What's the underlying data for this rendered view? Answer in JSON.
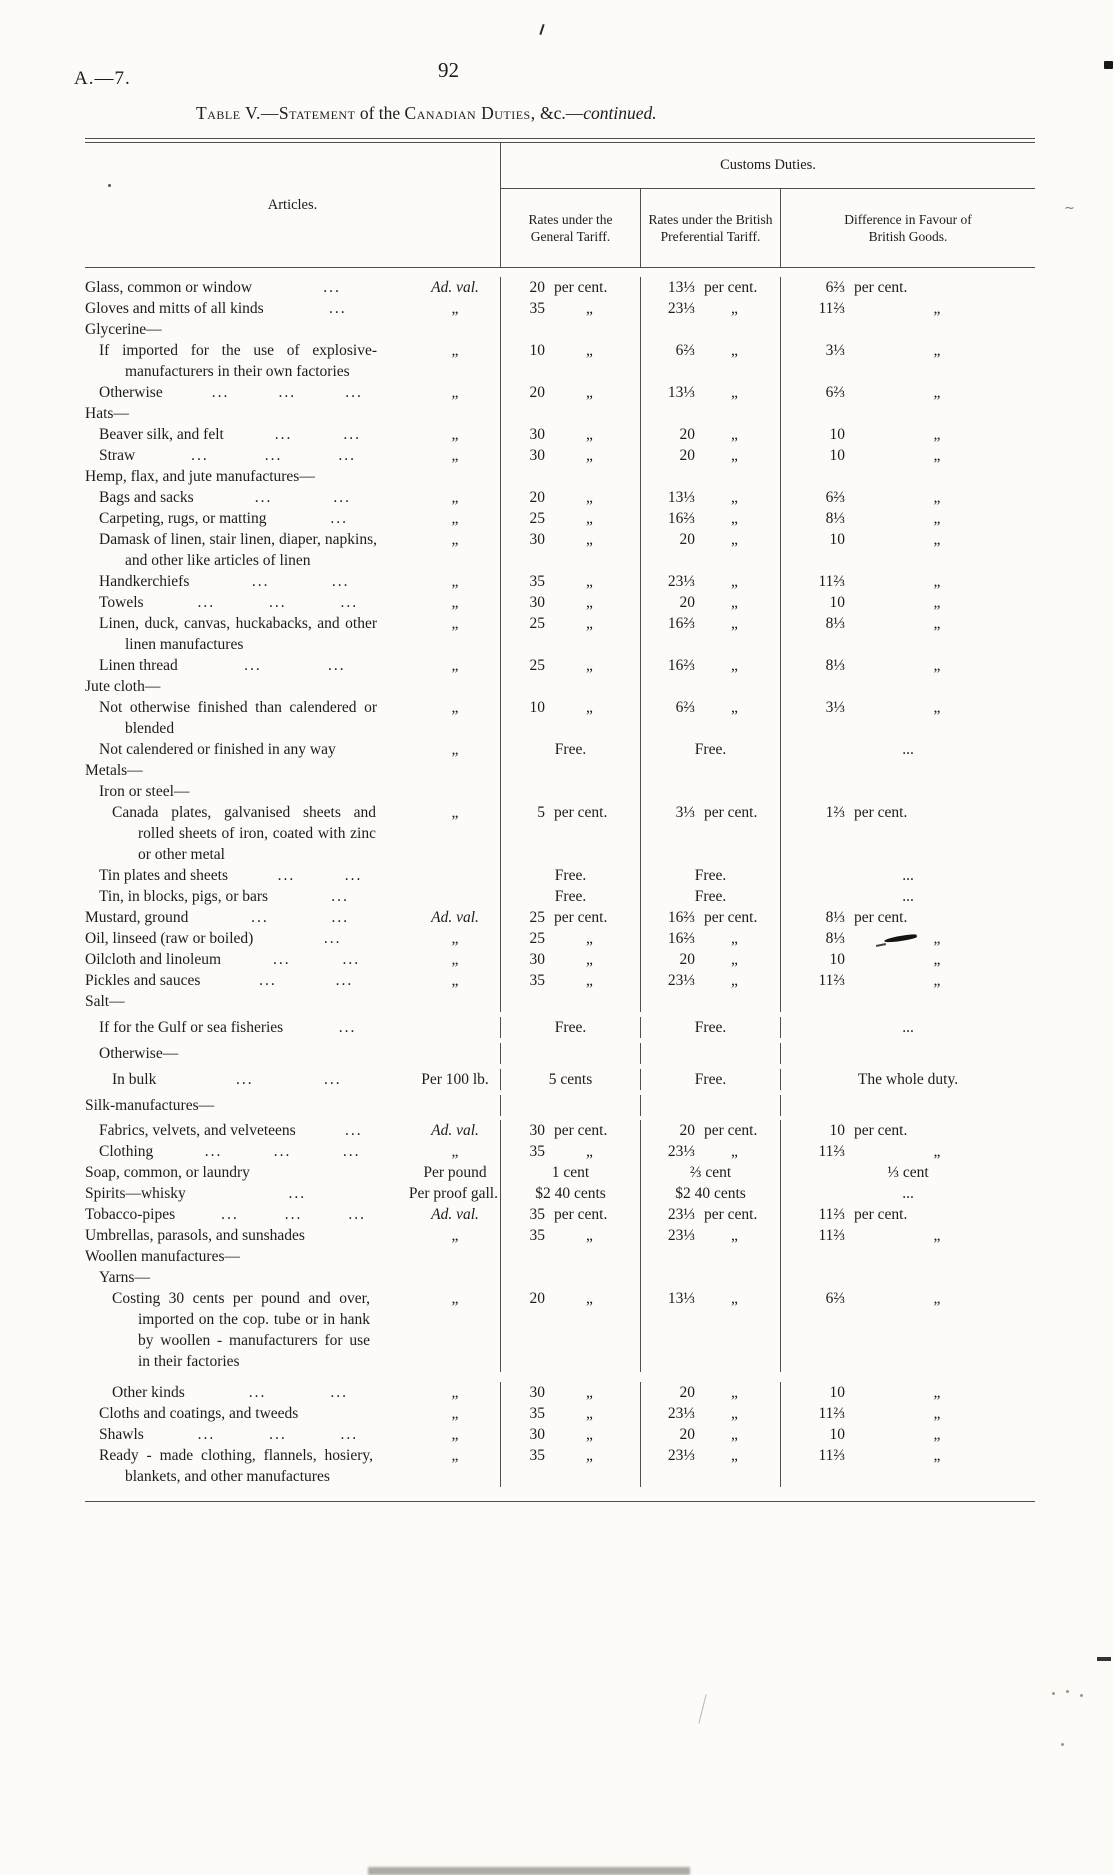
{
  "page": {
    "doc_ref": "A.—7.",
    "page_number": "92"
  },
  "title": {
    "segments": [
      {
        "text": "Table V.—Statement",
        "style": "smallcaps"
      },
      {
        "text": " of the ",
        "style": "plain"
      },
      {
        "text": "Canadian Duties,",
        "style": "smallcaps"
      },
      {
        "text": " &c.—",
        "style": "plain"
      },
      {
        "text": "continued.",
        "style": "italic"
      }
    ]
  },
  "table": {
    "headers": {
      "articles": "Articles.",
      "customs": "Customs Duties.",
      "col_general": "Rates under the General Tariff.",
      "col_preferential": "Rates under the British Preferential Tariff.",
      "col_difference": "Difference in Favour of British Goods."
    },
    "rows": [
      {
        "indent": 0,
        "article": "Glass, common or window",
        "dots": 1,
        "basis": "Ad. val.",
        "italic": true,
        "general": [
          "20",
          "per cent."
        ],
        "preferential": [
          "13⅓",
          "per cent."
        ],
        "difference": [
          "6⅔",
          "per cent."
        ]
      },
      {
        "indent": 0,
        "article": "Gloves and mitts of all kinds",
        "dots": 1,
        "basis": "„",
        "general": [
          "35",
          "„"
        ],
        "preferential": [
          "23⅓",
          "„"
        ],
        "difference": [
          "11⅔",
          "„"
        ]
      },
      {
        "indent": 0,
        "article": "Glycerine—",
        "dots": 0,
        "basis": ""
      },
      {
        "indent": 1,
        "article": "If imported for the use of explosive-manufacturers in their own factories",
        "dots": 0,
        "basis": "„",
        "maxw": 252,
        "general": [
          "10",
          "„"
        ],
        "preferential": [
          "6⅔",
          "„"
        ],
        "difference": [
          "3⅓",
          "„"
        ]
      },
      {
        "indent": 1,
        "article": "Otherwise",
        "dots": 3,
        "basis": "„",
        "general": [
          "20",
          "„"
        ],
        "preferential": [
          "13⅓",
          "„"
        ],
        "difference": [
          "6⅔",
          "„"
        ]
      },
      {
        "indent": 0,
        "article": "Hats—",
        "dots": 0,
        "basis": ""
      },
      {
        "indent": 1,
        "article": "Beaver silk, and felt",
        "dots": 2,
        "basis": "„",
        "general": [
          "30",
          "„"
        ],
        "preferential": [
          "20",
          "„"
        ],
        "difference": [
          "10",
          "„"
        ]
      },
      {
        "indent": 1,
        "article": "Straw",
        "dots": 3,
        "basis": "„",
        "general": [
          "30",
          "„"
        ],
        "preferential": [
          "20",
          "„"
        ],
        "difference": [
          "10",
          "„"
        ]
      },
      {
        "indent": 0,
        "article": "Hemp, flax, and jute manufactures—",
        "dots": 0,
        "basis": "",
        "maxw": 242
      },
      {
        "indent": 1,
        "article": "Bags and sacks",
        "dots": 2,
        "basis": "„",
        "general": [
          "20",
          "„"
        ],
        "preferential": [
          "13⅓",
          "„"
        ],
        "difference": [
          "6⅔",
          "„"
        ]
      },
      {
        "indent": 1,
        "article": "Carpeting, rugs, or matting",
        "dots": 1,
        "basis": "„",
        "general": [
          "25",
          "„"
        ],
        "preferential": [
          "16⅔",
          "„"
        ],
        "difference": [
          "8⅓",
          "„"
        ]
      },
      {
        "indent": 1,
        "article": "Damask of linen, stair linen, diaper, napkins, and other like articles of linen",
        "dots": 0,
        "basis": "„",
        "maxw": 252,
        "general": [
          "30",
          "„"
        ],
        "preferential": [
          "20",
          "„"
        ],
        "difference": [
          "10",
          "„"
        ]
      },
      {
        "indent": 1,
        "article": "Handkerchiefs",
        "dots": 2,
        "basis": "„",
        "general": [
          "35",
          "„"
        ],
        "preferential": [
          "23⅓",
          "„"
        ],
        "difference": [
          "11⅔",
          "„"
        ]
      },
      {
        "indent": 1,
        "article": "Towels",
        "dots": 3,
        "basis": "„",
        "general": [
          "30",
          "„"
        ],
        "preferential": [
          "20",
          "„"
        ],
        "difference": [
          "10",
          "„"
        ]
      },
      {
        "indent": 1,
        "article": "Linen, duck, canvas, huckabacks, and other linen manufactures",
        "dots": 0,
        "basis": "„",
        "maxw": 252,
        "general": [
          "25",
          "„"
        ],
        "preferential": [
          "16⅔",
          "„"
        ],
        "difference": [
          "8⅓",
          "„"
        ]
      },
      {
        "indent": 1,
        "article": "Linen thread",
        "dots": 2,
        "basis": "„",
        "general": [
          "25",
          "„"
        ],
        "preferential": [
          "16⅔",
          "„"
        ],
        "difference": [
          "8⅓",
          "„"
        ]
      },
      {
        "indent": 0,
        "article": "Jute cloth—",
        "dots": 0,
        "basis": ""
      },
      {
        "indent": 1,
        "article": "Not otherwise finished than calendered or blended",
        "dots": 0,
        "basis": "„",
        "maxw": 252,
        "general": [
          "10",
          "„"
        ],
        "preferential": [
          "6⅔",
          "„"
        ],
        "difference": [
          "3⅓",
          "„"
        ]
      },
      {
        "indent": 1,
        "article": "Not calendered or finished in any way",
        "dots": 0,
        "basis": "„",
        "maxw": 252,
        "general": [
          "Free."
        ],
        "preferential": [
          "Free."
        ],
        "difference": [
          "..."
        ]
      },
      {
        "indent": 0,
        "article": "Metals—",
        "dots": 0,
        "basis": ""
      },
      {
        "indent": 1,
        "article": "Iron or steel—",
        "dots": 0,
        "basis": ""
      },
      {
        "indent": 2,
        "article": "Canada plates, galvanised sheets and rolled sheets of iron, coated with zinc or other metal",
        "dots": 0,
        "basis": "„",
        "maxw": 238,
        "general": [
          "5",
          "per cent."
        ],
        "preferential": [
          "3⅓",
          "per cent."
        ],
        "difference": [
          "1⅔",
          "per cent."
        ]
      },
      {
        "indent": 1,
        "article": "Tin plates and sheets",
        "dots": 2,
        "basis": "",
        "general": [
          "Free."
        ],
        "preferential": [
          "Free."
        ],
        "difference": [
          "..."
        ]
      },
      {
        "indent": 1,
        "article": "Tin, in blocks, pigs, or bars",
        "dots": 1,
        "basis": "",
        "general": [
          "Free."
        ],
        "preferential": [
          "Free."
        ],
        "difference": [
          "..."
        ]
      },
      {
        "indent": 0,
        "article": "Mustard, ground",
        "dots": 2,
        "basis": "Ad. val.",
        "italic": true,
        "general": [
          "25",
          "per cent."
        ],
        "preferential": [
          "16⅔",
          "per cent."
        ],
        "difference": [
          "8⅓",
          "per cent."
        ]
      },
      {
        "indent": 0,
        "article": "Oil, linseed (raw or boiled)",
        "dots": 1,
        "basis": "„",
        "general": [
          "25",
          "„"
        ],
        "preferential": [
          "16⅔",
          "„"
        ],
        "difference": [
          "8⅓",
          "„"
        ]
      },
      {
        "indent": 0,
        "article": "Oilcloth and linoleum",
        "dots": 2,
        "basis": "„",
        "general": [
          "30",
          "„"
        ],
        "preferential": [
          "20",
          "„"
        ],
        "difference": [
          "10",
          "„"
        ]
      },
      {
        "indent": 0,
        "article": "Pickles and sauces",
        "dots": 2,
        "basis": "„",
        "general": [
          "35",
          "„"
        ],
        "preferential": [
          "23⅓",
          "„"
        ],
        "difference": [
          "11⅔",
          "„"
        ]
      },
      {
        "indent": 0,
        "article": "Salt—",
        "dots": 0,
        "basis": ""
      },
      {
        "indent": 1,
        "article": "If for the Gulf or sea fisheries",
        "dots": 1,
        "basis": "",
        "mt": 5,
        "general": [
          "Free."
        ],
        "preferential": [
          "Free."
        ],
        "difference": [
          "..."
        ]
      },
      {
        "indent": 1,
        "article": "Otherwise—",
        "dots": 0,
        "basis": "",
        "mt": 5
      },
      {
        "indent": 2,
        "article": "In bulk",
        "dots": 2,
        "basis": "Per 100 lb.",
        "mt": 5,
        "general": [
          "5 cents"
        ],
        "preferential": [
          "Free."
        ],
        "difference": [
          "The whole duty."
        ]
      },
      {
        "indent": 0,
        "article": "Silk-manufactures—",
        "dots": 0,
        "basis": "",
        "mt": 5
      },
      {
        "indent": 1,
        "article": "Fabrics, velvets, and velveteens",
        "dots": 1,
        "basis": "Ad. val.",
        "italic": true,
        "mt": 4,
        "general": [
          "30",
          "per cent."
        ],
        "preferential": [
          "20",
          "per cent."
        ],
        "difference": [
          "10",
          "per cent."
        ]
      },
      {
        "indent": 1,
        "article": "Clothing",
        "dots": 3,
        "basis": "„",
        "general": [
          "35",
          "„"
        ],
        "preferential": [
          "23⅓",
          "„"
        ],
        "difference": [
          "11⅔",
          "„"
        ]
      },
      {
        "indent": 0,
        "article": "Soap, common, or laundry",
        "dots": 0,
        "basis": "Per pound",
        "general": [
          "1 cent"
        ],
        "preferential": [
          "⅔ cent"
        ],
        "difference": [
          "⅓ cent"
        ]
      },
      {
        "indent": 0,
        "article": "Spirits—whisky",
        "dots": 1,
        "basis": "Per proof gall.",
        "general": [
          "$2 40 cents"
        ],
        "preferential": [
          "$2 40 cents"
        ],
        "difference": [
          "..."
        ]
      },
      {
        "indent": 0,
        "article": "Tobacco-pipes",
        "dots": 3,
        "basis": "Ad. val.",
        "italic": true,
        "general": [
          "35",
          "per cent."
        ],
        "preferential": [
          "23⅓",
          "per cent."
        ],
        "difference": [
          "11⅔",
          "per cent."
        ]
      },
      {
        "indent": 0,
        "article": "Umbrellas, parasols, and sunshades",
        "dots": 0,
        "basis": "„",
        "general": [
          "35",
          "„"
        ],
        "preferential": [
          "23⅓",
          "„"
        ],
        "difference": [
          "11⅔",
          "„"
        ]
      },
      {
        "indent": 0,
        "article": "Woollen manufactures—",
        "dots": 0,
        "basis": ""
      },
      {
        "indent": 1,
        "article": "Yarns—",
        "dots": 0,
        "basis": ""
      },
      {
        "indent": 2,
        "article": "Costing 30 cents per pound and over, imported on the cop. tube or in hank by woollen - manufacturers for use in their factories",
        "dots": 0,
        "basis": "„",
        "maxw": 232,
        "general": [
          "20",
          "„"
        ],
        "preferential": [
          "13⅓",
          "„"
        ],
        "difference": [
          "6⅔",
          "„"
        ]
      },
      {
        "indent": 2,
        "article": "Other kinds",
        "dots": 2,
        "basis": "„",
        "mt": 10,
        "general": [
          "30",
          "„"
        ],
        "preferential": [
          "20",
          "„"
        ],
        "difference": [
          "10",
          "„"
        ]
      },
      {
        "indent": 1,
        "article": "Cloths and coatings, and tweeds",
        "dots": 0,
        "basis": "„",
        "general": [
          "35",
          "„"
        ],
        "preferential": [
          "23⅓",
          "„"
        ],
        "difference": [
          "11⅔",
          "„"
        ]
      },
      {
        "indent": 1,
        "article": "Shawls",
        "dots": 3,
        "basis": "„",
        "general": [
          "30",
          "„"
        ],
        "preferential": [
          "20",
          "„"
        ],
        "difference": [
          "10",
          "„"
        ]
      },
      {
        "indent": 1,
        "article": "Ready - made clothing, flannels, hosiery, blankets, and other manufactures",
        "dots": 0,
        "basis": "„",
        "maxw": 248,
        "general": [
          "35",
          "„"
        ],
        "preferential": [
          "23⅓",
          "„"
        ],
        "difference": [
          "11⅔",
          "„"
        ]
      }
    ]
  }
}
